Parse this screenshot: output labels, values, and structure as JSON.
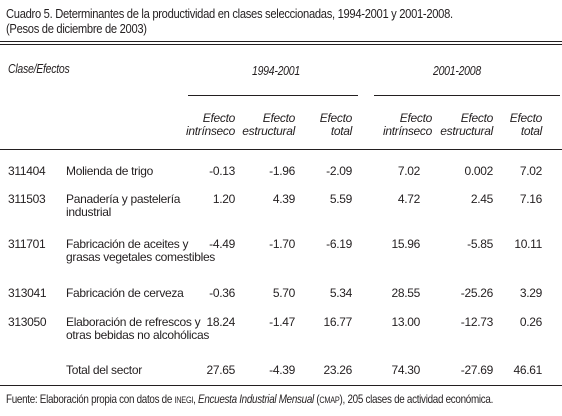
{
  "title": {
    "line1": "Cuadro 5. Determinantes de la productividad en clases seleccionadas, 1994-2001 y 2001-2008.",
    "line2": "(Pesos de diciembre de 2003)"
  },
  "header": {
    "clase_efectos": "Clase/Efectos",
    "period1": "1994-2001",
    "period2": "2001-2008",
    "columns": [
      {
        "line1": "Efecto",
        "line2": "intrínseco"
      },
      {
        "line1": "Efecto",
        "line2": "estructural"
      },
      {
        "line1": "Efecto",
        "line2": "total"
      },
      {
        "line1": "Efecto",
        "line2": "intrínseco"
      },
      {
        "line1": "Efecto",
        "line2": "estructural"
      },
      {
        "line1": "Efecto",
        "line2": "total"
      }
    ]
  },
  "rows": [
    {
      "code": "311404",
      "label1": "Molienda de trigo",
      "label2": "",
      "values": [
        "-0.13",
        "-1.96",
        "-2.09",
        "7.02",
        "0.002",
        "7.02"
      ]
    },
    {
      "code": "311503",
      "label1": "Panadería y pastelería",
      "label2": "industrial",
      "values": [
        "1.20",
        "4.39",
        "5.59",
        "4.72",
        "2.45",
        "7.16"
      ]
    },
    {
      "code": "311701",
      "label1": "Fabricación de aceites y",
      "label2": "grasas vegetales comestibles",
      "values": [
        "-4.49",
        "-1.70",
        "-6.19",
        "15.96",
        "-5.85",
        "10.11"
      ]
    },
    {
      "code": "313041",
      "label1": "Fabricación de cerveza",
      "label2": "",
      "values": [
        "-0.36",
        "5.70",
        "5.34",
        "28.55",
        "-25.26",
        "3.29"
      ]
    },
    {
      "code": "313050",
      "label1": "Elaboración de refrescos y",
      "label2": "otras bebidas no alcohólicas",
      "values": [
        "18.24",
        "-1.47",
        "16.77",
        "13.00",
        "-12.73",
        "0.26"
      ]
    },
    {
      "code": "",
      "label1": "Total del sector",
      "label2": "",
      "values": [
        "27.65",
        "-4.39",
        "23.26",
        "74.30",
        "-27.69",
        "46.61"
      ]
    }
  ],
  "footer": {
    "prefix": "Fuente: Elaboración propia con datos de ",
    "inegi": "INEGI",
    "sep1": ", ",
    "encuesta": "Encuesta Industrial Mensual",
    "open": " (",
    "cmap": "CMAP",
    "close": ")",
    "suffix": ", 205 clases de actividad económica."
  }
}
